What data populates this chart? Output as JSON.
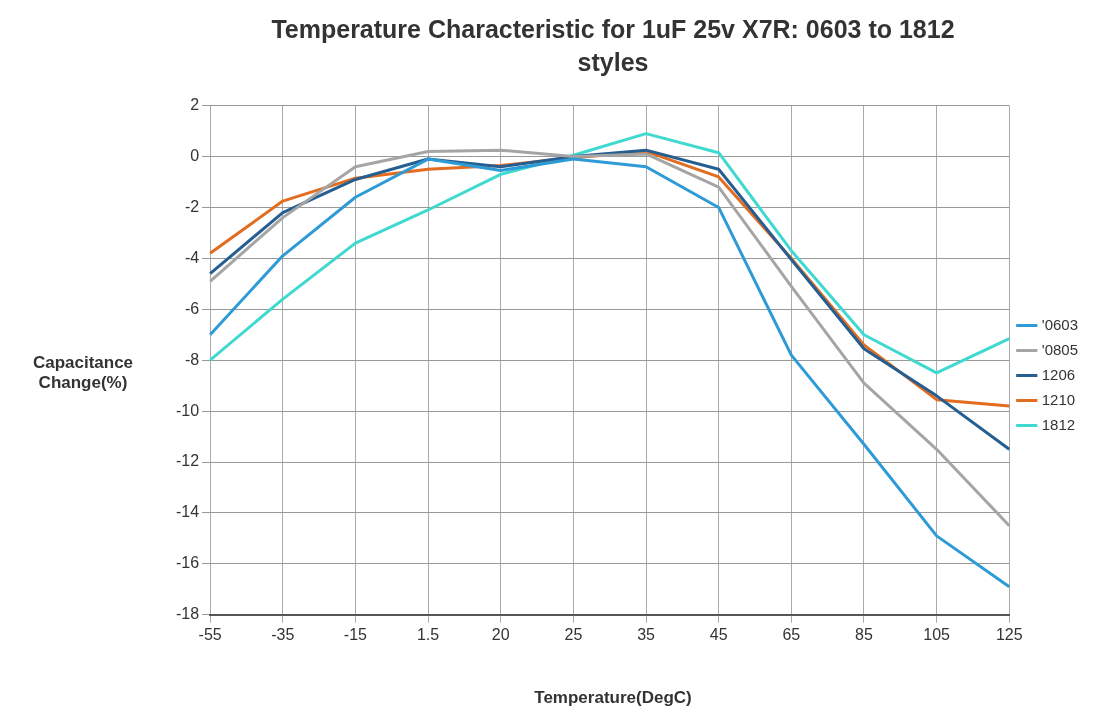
{
  "chart_data": {
    "type": "line",
    "title": "Temperature Characteristic for 1uF 25v X7R: 0603 to 1812 styles",
    "xlabel": "Temperature(DegC)",
    "ylabel": "Capacitance Change(%)",
    "categories": [
      "-55",
      "-35",
      "-15",
      "1.5",
      "20",
      "25",
      "35",
      "45",
      "65",
      "85",
      "105",
      "125"
    ],
    "ylim": [
      -18,
      2
    ],
    "yticks": [
      -18,
      -16,
      -14,
      -12,
      -10,
      -8,
      -6,
      -4,
      -2,
      0,
      2
    ],
    "grid": true,
    "legend": "right",
    "marker": "none",
    "line_style": "solid",
    "series": [
      {
        "name": "'0603",
        "color": "#2e9bd6",
        "values": [
          -7.0,
          -3.9,
          -1.6,
          -0.1,
          -0.55,
          -0.1,
          -0.4,
          -2.0,
          -7.8,
          -11.3,
          -14.9,
          -16.9
        ]
      },
      {
        "name": "'0805",
        "color": "#a5a5a5",
        "values": [
          -4.9,
          -2.4,
          -0.4,
          0.2,
          0.25,
          0,
          0.1,
          -1.2,
          -5.1,
          -8.9,
          -11.5,
          -14.5
        ]
      },
      {
        "name": "1206",
        "color": "#255e91",
        "values": [
          -4.6,
          -2.2,
          -0.9,
          -0.1,
          -0.4,
          0,
          0.25,
          -0.5,
          -4.05,
          -7.55,
          -9.4,
          -11.5
        ]
      },
      {
        "name": "1210",
        "color": "#e36c1f",
        "values": [
          -3.8,
          -1.75,
          -0.85,
          -0.5,
          -0.35,
          -0.05,
          0.2,
          -0.8,
          -4.0,
          -7.4,
          -9.55,
          -9.8
        ]
      },
      {
        "name": "1812",
        "color": "#3fd9d0",
        "values": [
          -8.0,
          -5.6,
          -3.4,
          -2.1,
          -0.7,
          0.05,
          0.9,
          0.15,
          -3.7,
          -7.0,
          -8.5,
          -7.15
        ]
      }
    ]
  }
}
